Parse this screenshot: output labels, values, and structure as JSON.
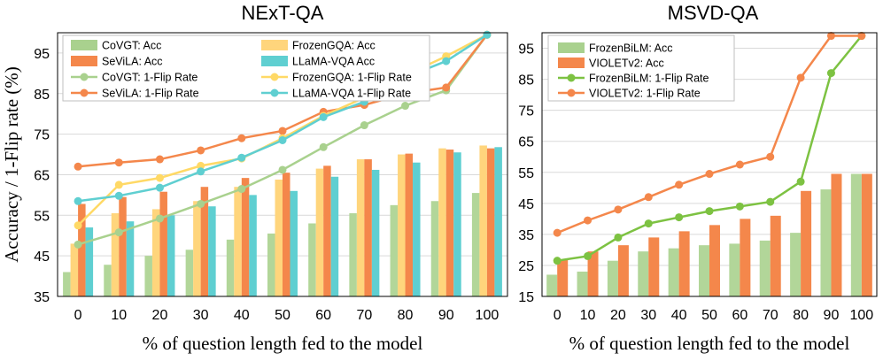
{
  "chart_data": [
    {
      "type": "bar+line",
      "title": "NExT-QA",
      "xlabel": "% of question length fed to the model",
      "ylabel": "Accuracy / 1-Flip rate (%)",
      "categories": [
        "0",
        "10",
        "20",
        "30",
        "40",
        "50",
        "60",
        "70",
        "80",
        "90",
        "100"
      ],
      "ylim": [
        35,
        100
      ],
      "yticks": [
        35,
        45,
        55,
        65,
        75,
        85,
        95
      ],
      "grid": true,
      "legend_placement": "top-left",
      "bar_series": [
        {
          "name": "CoVGT: Acc",
          "color": "#a9d18e",
          "values": [
            41.0,
            42.8,
            45.0,
            46.5,
            49.0,
            50.5,
            53.0,
            55.5,
            57.5,
            58.5,
            60.5
          ]
        },
        {
          "name": "SeViLA: Acc",
          "color": "#f4874b",
          "values": [
            57.8,
            59.5,
            60.8,
            62.0,
            64.2,
            65.5,
            67.2,
            68.8,
            70.2,
            71.2,
            71.5
          ]
        },
        {
          "name": "FrozenGQA: Acc",
          "color": "#ffd57c",
          "values": [
            48.0,
            55.5,
            56.5,
            58.5,
            62.0,
            63.8,
            66.5,
            68.8,
            70.0,
            71.5,
            72.2
          ]
        },
        {
          "name": "LLaMA-VQA Acc",
          "color": "#5fcfd1",
          "values": [
            52.0,
            53.5,
            55.0,
            57.2,
            60.0,
            61.0,
            64.5,
            66.2,
            68.0,
            70.5,
            71.8
          ]
        }
      ],
      "line_series": [
        {
          "name": "CoVGT: 1-Flip Rate",
          "color": "#a9d18e",
          "values": [
            47.8,
            50.8,
            54.2,
            57.8,
            61.5,
            66.2,
            71.8,
            77.2,
            82.0,
            85.8,
            99.5
          ]
        },
        {
          "name": "SeViLA: 1-Flip Rate",
          "color": "#f4874b",
          "values": [
            67.0,
            68.0,
            68.8,
            71.0,
            74.0,
            75.8,
            80.5,
            82.2,
            85.0,
            86.5,
            99.5
          ]
        },
        {
          "name": "FrozenGQA: 1-Flip Rate",
          "color": "#ffd966",
          "values": [
            52.5,
            62.5,
            64.2,
            67.2,
            69.0,
            74.0,
            79.5,
            84.0,
            89.5,
            94.2,
            99.5
          ]
        },
        {
          "name": "LLaMA-VQA 1-Flip Rate",
          "color": "#5fcfd1",
          "values": [
            58.5,
            59.8,
            61.8,
            65.8,
            69.2,
            73.5,
            79.2,
            83.0,
            89.0,
            93.0,
            99.5
          ]
        }
      ],
      "legend_order": [
        "CoVGT: Acc",
        "FrozenGQA: Acc",
        "SeViLA: Acc",
        "LLaMA-VQA Acc",
        "CoVGT: 1-Flip Rate",
        "FrozenGQA: 1-Flip Rate",
        "SeViLA: 1-Flip Rate",
        "LLaMA-VQA 1-Flip Rate"
      ]
    },
    {
      "type": "bar+line",
      "title": "MSVD-QA",
      "xlabel": "% of question length fed to the model",
      "ylabel": "",
      "categories": [
        "0",
        "10",
        "20",
        "30",
        "40",
        "50",
        "60",
        "70",
        "80",
        "90",
        "100"
      ],
      "ylim": [
        15,
        100
      ],
      "yticks": [
        15,
        25,
        35,
        45,
        55,
        65,
        75,
        85,
        95
      ],
      "grid": true,
      "legend_placement": "top-left",
      "bar_series": [
        {
          "name": "FrozenBiLM: Acc",
          "color": "#a9d18e",
          "values": [
            22.0,
            23.0,
            26.5,
            29.5,
            30.5,
            31.5,
            32.0,
            33.0,
            35.5,
            49.5,
            54.5
          ]
        },
        {
          "name": "VIOLETv2: Acc",
          "color": "#f4874b",
          "values": [
            27.0,
            29.5,
            31.5,
            34.0,
            36.0,
            38.0,
            40.0,
            41.0,
            49.0,
            54.5,
            54.5
          ]
        }
      ],
      "line_series": [
        {
          "name": "FrozenBiLM: 1-Flip Rate",
          "color": "#7dc242",
          "values": [
            26.5,
            28.0,
            34.0,
            38.5,
            40.5,
            42.5,
            44.0,
            45.5,
            52.0,
            87.0,
            99.0
          ]
        },
        {
          "name": "VIOLETv2: 1-Flip Rate",
          "color": "#f4874b",
          "values": [
            35.5,
            39.5,
            43.0,
            47.0,
            51.0,
            54.5,
            57.5,
            60.0,
            85.5,
            99.0,
            99.0
          ]
        }
      ],
      "legend_order": [
        "FrozenBiLM: Acc",
        "VIOLETv2: Acc",
        "FrozenBiLM: 1-Flip Rate",
        "VIOLETv2: 1-Flip Rate"
      ]
    }
  ]
}
